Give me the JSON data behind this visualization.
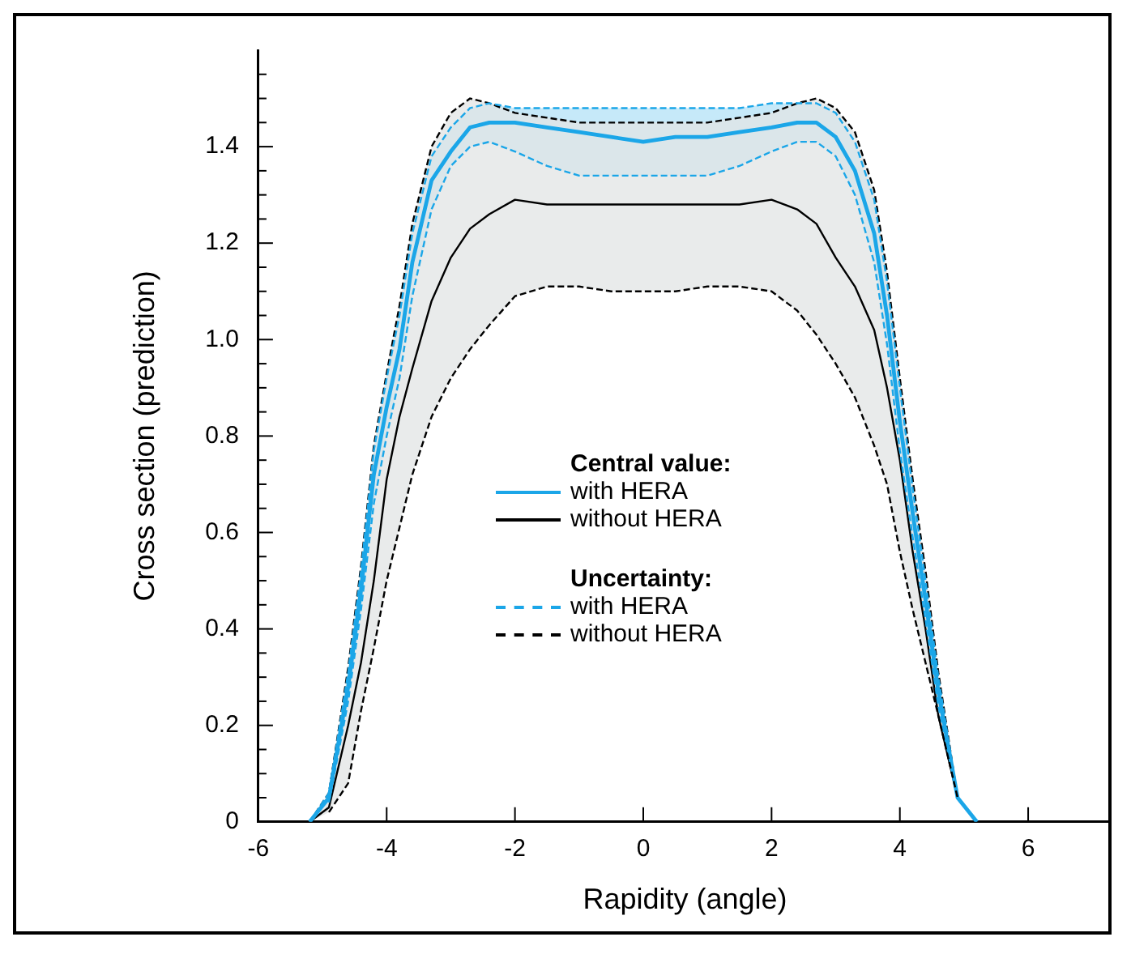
{
  "chart_data": {
    "type": "line",
    "xlabel": "Rapidity (angle)",
    "ylabel": "Cross section (prediction)",
    "legend_title": "Central value:",
    "annotations": [
      "Uncertainty:"
    ],
    "x": [
      -5.2,
      -4.9,
      -4.6,
      -4.4,
      -4.2,
      -4.0,
      -3.8,
      -3.6,
      -3.3,
      -3.0,
      -2.7,
      -2.4,
      -2,
      -1.5,
      -1,
      -0.5,
      0,
      0.5,
      1,
      1.5,
      2,
      2.4,
      2.7,
      3.0,
      3.3,
      3.6,
      3.8,
      4.0,
      4.2,
      4.4,
      4.6,
      4.9,
      5.2
    ],
    "series": [
      {
        "name": "with HERA",
        "color": "#1ba6e8",
        "values": [
          0,
          0.05,
          0.28,
          0.48,
          0.72,
          0.86,
          0.98,
          1.16,
          1.33,
          1.39,
          1.44,
          1.45,
          1.45,
          1.44,
          1.43,
          1.42,
          1.41,
          1.42,
          1.42,
          1.43,
          1.44,
          1.45,
          1.45,
          1.42,
          1.35,
          1.22,
          1.05,
          0.83,
          0.64,
          0.46,
          0.27,
          0.05,
          0
        ],
        "lower": [
          0,
          0.04,
          0.25,
          0.44,
          0.66,
          0.8,
          0.92,
          1.09,
          1.27,
          1.36,
          1.4,
          1.41,
          1.39,
          1.36,
          1.34,
          1.34,
          1.34,
          1.34,
          1.34,
          1.36,
          1.39,
          1.41,
          1.41,
          1.38,
          1.3,
          1.16,
          0.99,
          0.77,
          0.59,
          0.42,
          0.24,
          0.05,
          0
        ],
        "upper": [
          0,
          0.06,
          0.31,
          0.52,
          0.77,
          0.92,
          1.05,
          1.22,
          1.38,
          1.44,
          1.48,
          1.49,
          1.48,
          1.48,
          1.48,
          1.48,
          1.48,
          1.48,
          1.48,
          1.48,
          1.49,
          1.49,
          1.49,
          1.47,
          1.41,
          1.29,
          1.12,
          0.9,
          0.69,
          0.5,
          0.3,
          0.05,
          0
        ]
      },
      {
        "name": "without HERA",
        "color": "#000000",
        "values": [
          0,
          0.03,
          0.2,
          0.33,
          0.5,
          0.71,
          0.84,
          0.94,
          1.08,
          1.17,
          1.23,
          1.26,
          1.29,
          1.28,
          1.28,
          1.28,
          1.28,
          1.28,
          1.28,
          1.28,
          1.29,
          1.27,
          1.24,
          1.17,
          1.11,
          1.02,
          0.9,
          0.75,
          0.56,
          0.4,
          0.22,
          0.05,
          0
        ],
        "lower": [
          0,
          0.02,
          0.08,
          0.23,
          0.36,
          0.5,
          0.61,
          0.72,
          0.84,
          0.92,
          0.98,
          1.03,
          1.09,
          1.11,
          1.11,
          1.1,
          1.1,
          1.1,
          1.11,
          1.11,
          1.1,
          1.06,
          1.01,
          0.95,
          0.88,
          0.78,
          0.7,
          0.56,
          0.44,
          0.33,
          0.22,
          0.05,
          0
        ],
        "upper": [
          0,
          0.06,
          0.32,
          0.53,
          0.78,
          0.93,
          1.07,
          1.24,
          1.4,
          1.47,
          1.5,
          1.49,
          1.47,
          1.46,
          1.45,
          1.45,
          1.45,
          1.45,
          1.45,
          1.46,
          1.47,
          1.49,
          1.5,
          1.48,
          1.43,
          1.31,
          1.14,
          0.92,
          0.71,
          0.52,
          0.31,
          0.05,
          0
        ]
      },
      {
        "name": "with HERA",
        "color": "#1ba6e8",
        "line_style": "dashed",
        "values": [
          0,
          0.06,
          0.31,
          0.52,
          0.77,
          0.92,
          1.05,
          1.22,
          1.38,
          1.44,
          1.48,
          1.49,
          1.48,
          1.48,
          1.48,
          1.48,
          1.48,
          1.48,
          1.48,
          1.48,
          1.49,
          1.49,
          1.49,
          1.47,
          1.41,
          1.29,
          1.12,
          0.9,
          0.69,
          0.5,
          0.3,
          0.05,
          0
        ]
      },
      {
        "color": "#1ba6e8",
        "line_style": "dashed",
        "x": [
          -4.9,
          -4.6,
          -4.4,
          -4.2,
          -4.0,
          -3.8,
          -3.6,
          -3.3,
          -3.0,
          -2.7,
          -2.4,
          -2,
          -1.5,
          -1,
          -0.5,
          0,
          0.5,
          1,
          1.5,
          2,
          2.4,
          2.7,
          3.0,
          3.3,
          3.6,
          3.8,
          4.0,
          4.2,
          4.4,
          4.6,
          4.9
        ],
        "values": [
          0.04,
          0.25,
          0.44,
          0.66,
          0.8,
          0.92,
          1.09,
          1.27,
          1.36,
          1.4,
          1.41,
          1.39,
          1.36,
          1.34,
          1.34,
          1.34,
          1.34,
          1.34,
          1.36,
          1.39,
          1.41,
          1.41,
          1.38,
          1.3,
          1.16,
          0.99,
          0.77,
          0.59,
          0.42,
          0.24,
          0.05
        ]
      },
      {
        "name": "without HERA",
        "color": "#000000",
        "line_style": "dashed",
        "values": [
          0,
          0.06,
          0.32,
          0.53,
          0.78,
          0.93,
          1.07,
          1.24,
          1.4,
          1.47,
          1.5,
          1.49,
          1.47,
          1.46,
          1.45,
          1.45,
          1.45,
          1.45,
          1.45,
          1.46,
          1.47,
          1.49,
          1.5,
          1.48,
          1.43,
          1.31,
          1.14,
          0.92,
          0.71,
          0.52,
          0.31,
          0.05,
          0
        ]
      },
      {
        "color": "#000000",
        "line_style": "dashed",
        "x": [
          -4.9,
          -4.6,
          -4.4,
          -4.2,
          -4.0,
          -3.8,
          -3.6,
          -3.3,
          -3.0,
          -2.7,
          -2.4,
          -2,
          -1.5,
          -1,
          -0.5,
          0,
          0.5,
          1,
          1.5,
          2,
          2.4,
          2.7,
          3.0,
          3.3,
          3.6,
          3.8,
          4.0,
          4.2,
          4.4,
          4.6,
          4.9
        ],
        "values": [
          0.02,
          0.08,
          0.23,
          0.36,
          0.5,
          0.61,
          0.72,
          0.84,
          0.92,
          0.98,
          1.03,
          1.09,
          1.11,
          1.11,
          1.1,
          1.1,
          1.1,
          1.11,
          1.11,
          1.1,
          1.06,
          1.01,
          0.95,
          0.88,
          0.78,
          0.7,
          0.56,
          0.44,
          0.33,
          0.22,
          0.05
        ]
      }
    ],
    "xlim": [
      -6,
      7.3
    ],
    "xticks": [
      -6,
      -4,
      -2,
      0,
      2,
      4,
      6
    ],
    "ylim": [
      0,
      1.6
    ],
    "yticks": [
      0,
      {
        "value": 0.05,
        "label": null
      },
      {
        "value": 0.1,
        "label": null
      },
      {
        "value": 0.15,
        "label": null
      },
      0.2,
      {
        "value": 0.25,
        "label": null
      },
      {
        "value": 0.3,
        "label": null
      },
      {
        "value": 0.35,
        "label": null
      },
      0.4,
      {
        "value": 0.45,
        "label": null
      },
      {
        "value": 0.5,
        "label": null
      },
      {
        "value": 0.55,
        "label": null
      },
      0.6,
      {
        "value": 0.65,
        "label": null
      },
      {
        "value": 0.7,
        "label": null
      },
      {
        "value": 0.75,
        "label": null
      },
      0.8,
      {
        "value": 0.85,
        "label": null
      },
      {
        "value": 0.9,
        "label": null
      },
      {
        "value": 0.95,
        "label": null
      },
      {
        "value": 1,
        "label": "1.0"
      },
      {
        "value": 1.05,
        "label": null
      },
      {
        "value": 1.1,
        "label": null
      },
      {
        "value": 1.15,
        "label": null
      },
      1.2,
      {
        "value": 1.25,
        "label": null
      },
      {
        "value": 1.3,
        "label": null
      },
      {
        "value": 1.35,
        "label": null
      },
      1.4,
      {
        "value": 1.45,
        "label": null
      },
      {
        "value": 1.5,
        "label": null
      },
      {
        "value": 1.55,
        "label": null
      }
    ],
    "grid": false,
    "legend": "center",
    "marker": "none",
    "line_style": "solid"
  }
}
